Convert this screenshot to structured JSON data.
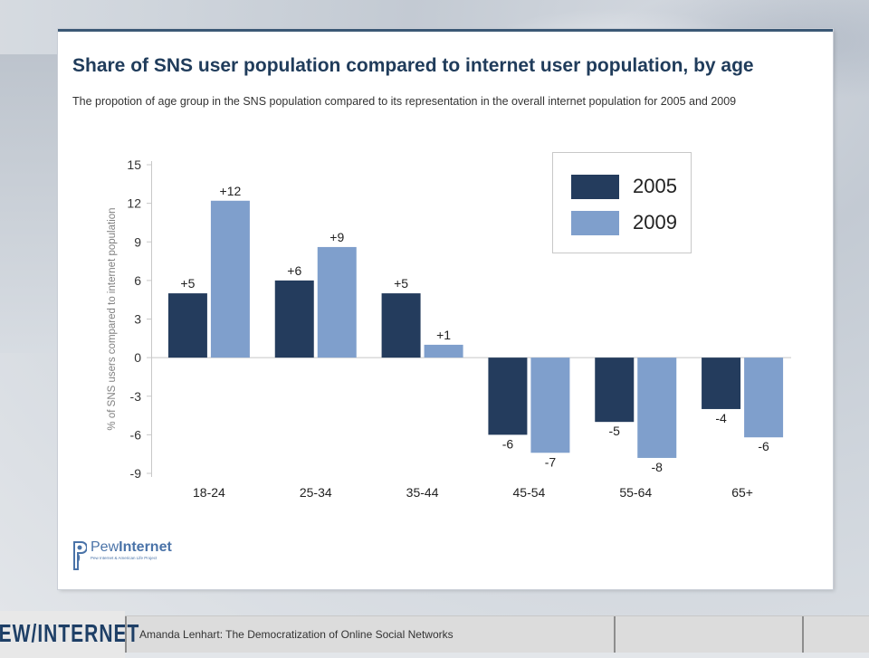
{
  "title": "Share of SNS user population compared to internet user population, by age",
  "subtitle": "The propotion of age group in the SNS population compared to its representation in the overall internet population for 2005 and 2009",
  "chart_data": {
    "type": "bar",
    "title": "Share of SNS user population compared to internet user population, by age",
    "xlabel": "",
    "ylabel": "% of SNS users compared to internet population",
    "ylim": [
      -9,
      15
    ],
    "yticks": [
      15,
      12,
      9,
      6,
      3,
      0,
      -3,
      -6,
      -9
    ],
    "categories": [
      "18-24",
      "25-34",
      "35-44",
      "45-54",
      "55-64",
      "65+"
    ],
    "series": [
      {
        "name": "2005",
        "values": [
          5,
          6,
          5,
          -6,
          -5,
          -4
        ],
        "labels": [
          "+5",
          "+6",
          "+5",
          "-6",
          "-5",
          "-4"
        ],
        "color": "#243c5d"
      },
      {
        "name": "2009",
        "values": [
          12.2,
          8.6,
          1,
          -7.4,
          -7.8,
          -6.2
        ],
        "labels": [
          "+12",
          "+9",
          "+1",
          "-7",
          "-8",
          "-6"
        ],
        "color": "#7f9fcc"
      }
    ],
    "legend_position": "top-right",
    "grid": false
  },
  "logo": {
    "name_light": "Pew",
    "name_bold": "Internet",
    "tagline": "Pew Internet & American Life Project"
  },
  "footer": {
    "brand": "PEW/INTERNET",
    "text": "Amanda Lenhart: The Democratization of Online Social Networks"
  }
}
